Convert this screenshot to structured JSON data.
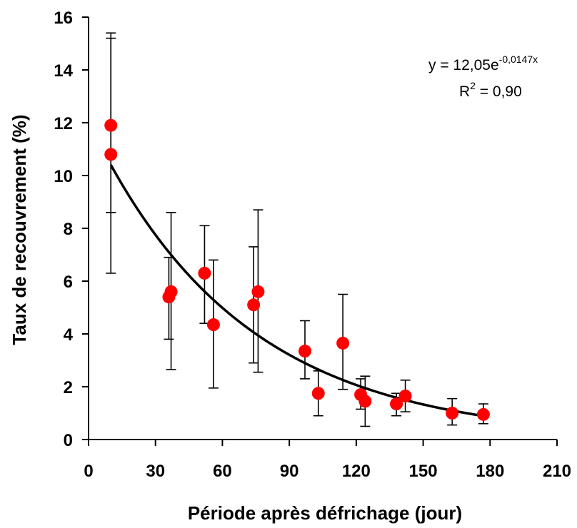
{
  "chart_data": {
    "type": "scatter",
    "title": "",
    "xlabel": "Période après défrichage (jour)",
    "ylabel": "Taux de recouvrement (%)",
    "xlim": [
      0,
      210
    ],
    "ylim": [
      0,
      16
    ],
    "xticks": [
      "0",
      "30",
      "60",
      "90",
      "120",
      "150",
      "180",
      "210"
    ],
    "yticks": [
      "0",
      "2",
      "4",
      "6",
      "8",
      "10",
      "12",
      "14",
      "16"
    ],
    "grid": false,
    "legend": "none",
    "marker_color": "#ff0000",
    "line_color": "#000000",
    "points": [
      {
        "x": 10,
        "y": 11.9,
        "err_low": 8.6,
        "err_high": 15.2
      },
      {
        "x": 10,
        "y": 10.8,
        "err_low": 6.3,
        "err_high": 15.4
      },
      {
        "x": 36,
        "y": 5.4,
        "err_low": 3.8,
        "err_high": 6.9
      },
      {
        "x": 37,
        "y": 5.6,
        "err_low": 2.65,
        "err_high": 8.6
      },
      {
        "x": 52,
        "y": 6.3,
        "err_low": 4.4,
        "err_high": 8.1
      },
      {
        "x": 56,
        "y": 4.35,
        "err_low": 1.95,
        "err_high": 6.8
      },
      {
        "x": 74,
        "y": 5.1,
        "err_low": 2.9,
        "err_high": 7.3
      },
      {
        "x": 76,
        "y": 5.6,
        "err_low": 2.55,
        "err_high": 8.7
      },
      {
        "x": 97,
        "y": 3.35,
        "err_low": 2.3,
        "err_high": 4.5
      },
      {
        "x": 103,
        "y": 1.75,
        "err_low": 0.9,
        "err_high": 2.6
      },
      {
        "x": 114,
        "y": 3.65,
        "err_low": 1.9,
        "err_high": 5.5
      },
      {
        "x": 122,
        "y": 1.7,
        "err_low": 1.15,
        "err_high": 2.3
      },
      {
        "x": 124,
        "y": 1.45,
        "err_low": 0.5,
        "err_high": 2.4
      },
      {
        "x": 138,
        "y": 1.35,
        "err_low": 0.9,
        "err_high": 1.75
      },
      {
        "x": 142,
        "y": 1.65,
        "err_low": 1.05,
        "err_high": 2.25
      },
      {
        "x": 163,
        "y": 1.0,
        "err_low": 0.55,
        "err_high": 1.55
      },
      {
        "x": 177,
        "y": 0.95,
        "err_low": 0.6,
        "err_high": 1.35
      }
    ],
    "trendline": {
      "type": "exponential",
      "a": 12.05,
      "b": -0.0147,
      "x_from": 10,
      "x_to": 177
    },
    "annotation": {
      "equation_prefix": "y = 12,05e",
      "equation_exponent": "-0,0147x",
      "r2_prefix": "R",
      "r2_exponent": "2",
      "r2_suffix": " = 0,90"
    }
  }
}
